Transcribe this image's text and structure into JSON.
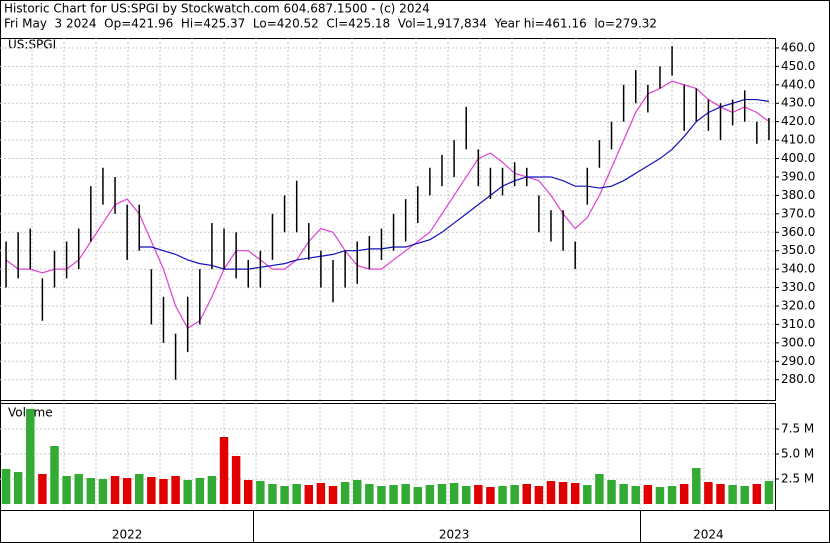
{
  "chart_data": [
    {
      "type": "stock",
      "title": "Historic Chart for US:SPGI by Stockwatch.com 604.687.1500 - (c) 2024",
      "subtitle": "Fri May  3 2024  Op=421.96  Hi=425.37  Lo=420.52  Cl=425.18  Vol=1,917,834  Year hi=461.16  lo=279.32",
      "label": "US:SPGI",
      "categories": [
        null,
        null,
        null,
        null,
        null,
        null,
        null,
        null,
        null,
        null,
        "2022",
        null,
        null,
        null,
        null,
        null,
        null,
        null,
        null,
        null,
        null,
        null,
        null,
        null,
        null,
        null,
        null,
        null,
        null,
        null,
        null,
        null,
        null,
        null,
        null,
        null,
        null,
        "2023",
        null,
        null,
        null,
        null,
        null,
        null,
        null,
        null,
        null,
        null,
        null,
        null,
        null,
        null,
        null,
        null,
        null,
        null,
        null,
        null,
        "2024",
        null,
        null,
        null,
        null,
        null
      ],
      "high": [
        355,
        360,
        362,
        335,
        350,
        355,
        362,
        385,
        395,
        390,
        375,
        375,
        340,
        325,
        305,
        325,
        340,
        365,
        362,
        360,
        345,
        350,
        370,
        380,
        388,
        365,
        350,
        345,
        350,
        355,
        358,
        362,
        370,
        378,
        385,
        395,
        402,
        410,
        428,
        405,
        395,
        395,
        398,
        395,
        380,
        372,
        372,
        355,
        395,
        410,
        420,
        440,
        448,
        440,
        450,
        461,
        440,
        438,
        432,
        430,
        432,
        437,
        420,
        422
      ],
      "low": [
        330,
        335,
        340,
        312,
        330,
        335,
        340,
        355,
        375,
        370,
        345,
        350,
        310,
        300,
        280,
        295,
        310,
        340,
        340,
        335,
        330,
        330,
        345,
        360,
        360,
        345,
        330,
        322,
        330,
        332,
        340,
        345,
        350,
        355,
        365,
        380,
        385,
        390,
        405,
        385,
        378,
        380,
        385,
        385,
        360,
        355,
        350,
        340,
        375,
        395,
        405,
        420,
        430,
        425,
        438,
        445,
        415,
        420,
        415,
        410,
        418,
        420,
        408,
        410
      ],
      "color": "#000000",
      "lines": [
        {
          "color": "#e040d0",
          "values": [
            345,
            340,
            340,
            338,
            340,
            340,
            345,
            355,
            365,
            375,
            378,
            370,
            355,
            340,
            320,
            308,
            312,
            325,
            340,
            350,
            350,
            345,
            340,
            340,
            345,
            355,
            362,
            360,
            350,
            342,
            340,
            340,
            345,
            350,
            355,
            360,
            370,
            380,
            390,
            400,
            403,
            398,
            392,
            390,
            388,
            380,
            370,
            362,
            368,
            380,
            395,
            410,
            425,
            435,
            438,
            442,
            440,
            438,
            432,
            428,
            425,
            428,
            425,
            420
          ]
        },
        {
          "color": "#1010c0",
          "values": [
            null,
            null,
            null,
            null,
            null,
            null,
            null,
            null,
            null,
            null,
            null,
            352,
            352,
            350,
            348,
            345,
            343,
            342,
            340,
            340,
            340,
            341,
            342,
            343,
            345,
            346,
            347,
            348,
            350,
            350,
            351,
            351,
            352,
            352,
            354,
            356,
            360,
            365,
            370,
            375,
            380,
            385,
            388,
            390,
            390,
            390,
            388,
            385,
            385,
            384,
            385,
            388,
            392,
            396,
            400,
            405,
            412,
            420,
            425,
            428,
            430,
            432,
            432,
            431
          ]
        }
      ],
      "ylim": [
        269,
        465.4
      ],
      "yticks": [
        {
          "value": 280,
          "label": "280.0"
        },
        {
          "value": 290,
          "label": "290.0"
        },
        {
          "value": 300,
          "label": "300.0"
        },
        {
          "value": 310,
          "label": "310.0"
        },
        {
          "value": 320,
          "label": "320.0"
        },
        {
          "value": 330,
          "label": "330.0"
        },
        {
          "value": 340,
          "label": "340.0"
        },
        {
          "value": 350,
          "label": "350.0"
        },
        {
          "value": 360,
          "label": "360.0"
        },
        {
          "value": 370,
          "label": "370.0"
        },
        {
          "value": 380,
          "label": "380.0"
        },
        {
          "value": 390,
          "label": "390.0"
        },
        {
          "value": 400,
          "label": "400.0"
        },
        {
          "value": 410,
          "label": "410.0"
        },
        {
          "value": 420,
          "label": "420.0"
        },
        {
          "value": 430,
          "label": "430.0"
        },
        {
          "value": 440,
          "label": "440.0"
        },
        {
          "value": 450,
          "label": "450.0"
        },
        {
          "value": 460,
          "label": "460.0"
        }
      ],
      "grid": true
    },
    {
      "type": "volume",
      "label": "Volume",
      "values": [
        3.5,
        3.2,
        9.5,
        3.0,
        5.8,
        2.8,
        3.0,
        2.6,
        2.5,
        2.8,
        2.6,
        3.0,
        2.7,
        2.5,
        2.8,
        2.4,
        2.6,
        2.8,
        6.7,
        4.8,
        2.4,
        2.3,
        2.0,
        1.8,
        2.0,
        1.9,
        2.1,
        1.8,
        2.2,
        2.4,
        2.0,
        1.8,
        1.9,
        2.0,
        1.7,
        1.9,
        2.0,
        2.1,
        1.8,
        1.9,
        1.7,
        1.8,
        1.9,
        2.0,
        1.8,
        2.3,
        2.2,
        2.1,
        1.9,
        3.0,
        2.4,
        2.0,
        1.8,
        1.9,
        1.7,
        1.8,
        2.0,
        3.6,
        2.2,
        2.0,
        1.9,
        1.8,
        2.0,
        2.3
      ],
      "up_color": "#33aa33",
      "down_color": "#e00000",
      "ylim": [
        -0.6,
        10.1
      ],
      "yticks": [
        {
          "value": 2.5,
          "label": "2.5 M"
        },
        {
          "value": 5.0,
          "label": "5.0 M"
        },
        {
          "value": 7.5,
          "label": "7.5 M"
        }
      ],
      "grid": true
    }
  ]
}
